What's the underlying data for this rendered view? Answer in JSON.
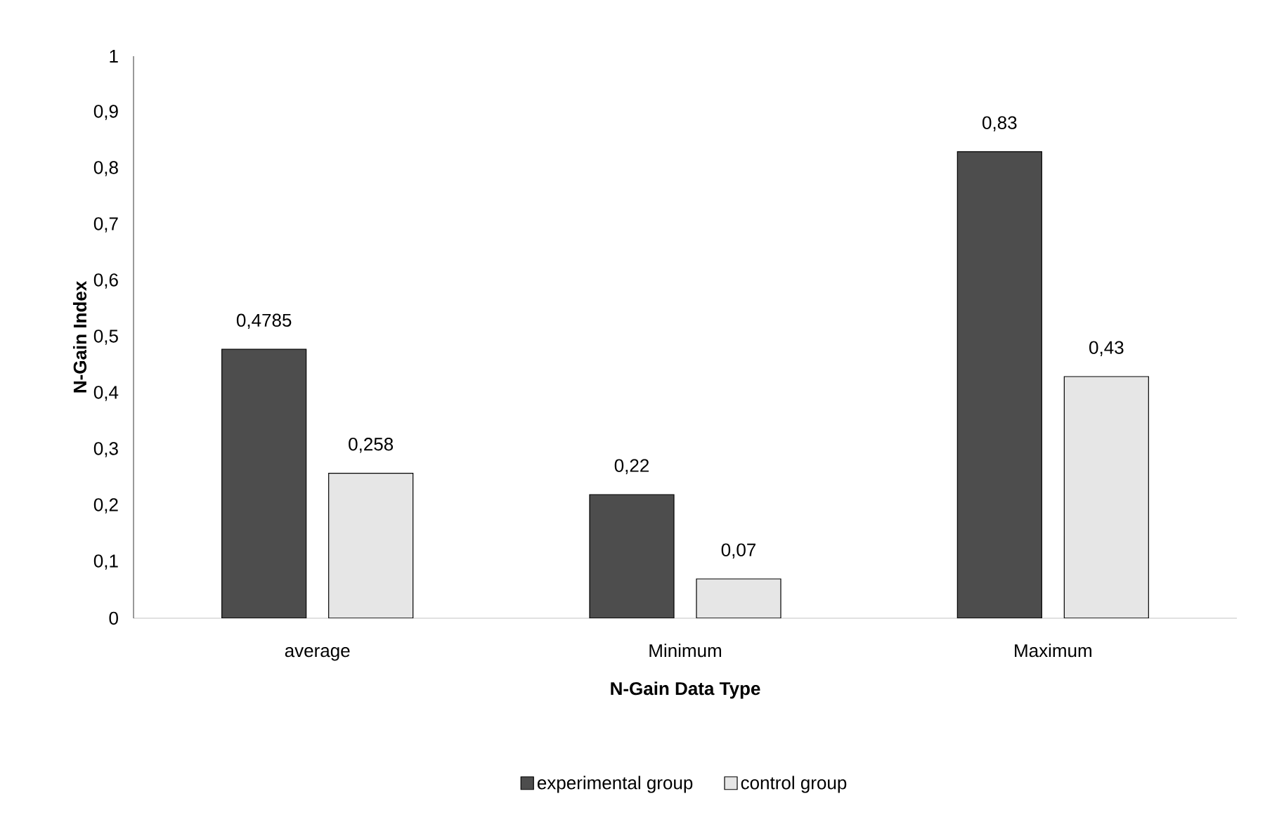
{
  "chart_data": {
    "type": "bar",
    "xlabel": "N-Gain Data Type",
    "ylabel": "N-Gain Index",
    "categories": [
      "average",
      "Minimum",
      "Maximum"
    ],
    "series": [
      {
        "name": "experimental group",
        "color": "#4d4d4d",
        "values": [
          0.4785,
          0.22,
          0.83
        ],
        "value_labels": [
          "0,4785",
          "0,22",
          "0,83"
        ]
      },
      {
        "name": "control group",
        "color": "#e6e6e6",
        "values": [
          0.258,
          0.07,
          0.43
        ],
        "value_labels": [
          "0,258",
          "0,07",
          "0,43"
        ]
      }
    ],
    "ylim": [
      0,
      1
    ],
    "yticks": [
      {
        "value": 0,
        "label": "0"
      },
      {
        "value": 0.1,
        "label": "0,1"
      },
      {
        "value": 0.2,
        "label": "0,2"
      },
      {
        "value": 0.3,
        "label": "0,3"
      },
      {
        "value": 0.4,
        "label": "0,4"
      },
      {
        "value": 0.5,
        "label": "0,5"
      },
      {
        "value": 0.6,
        "label": "0,6"
      },
      {
        "value": 0.7,
        "label": "0,7"
      },
      {
        "value": 0.8,
        "label": "0,8"
      },
      {
        "value": 0.9,
        "label": "0,9"
      },
      {
        "value": 1,
        "label": "1"
      }
    ],
    "legend": "bottom",
    "grid": false
  }
}
